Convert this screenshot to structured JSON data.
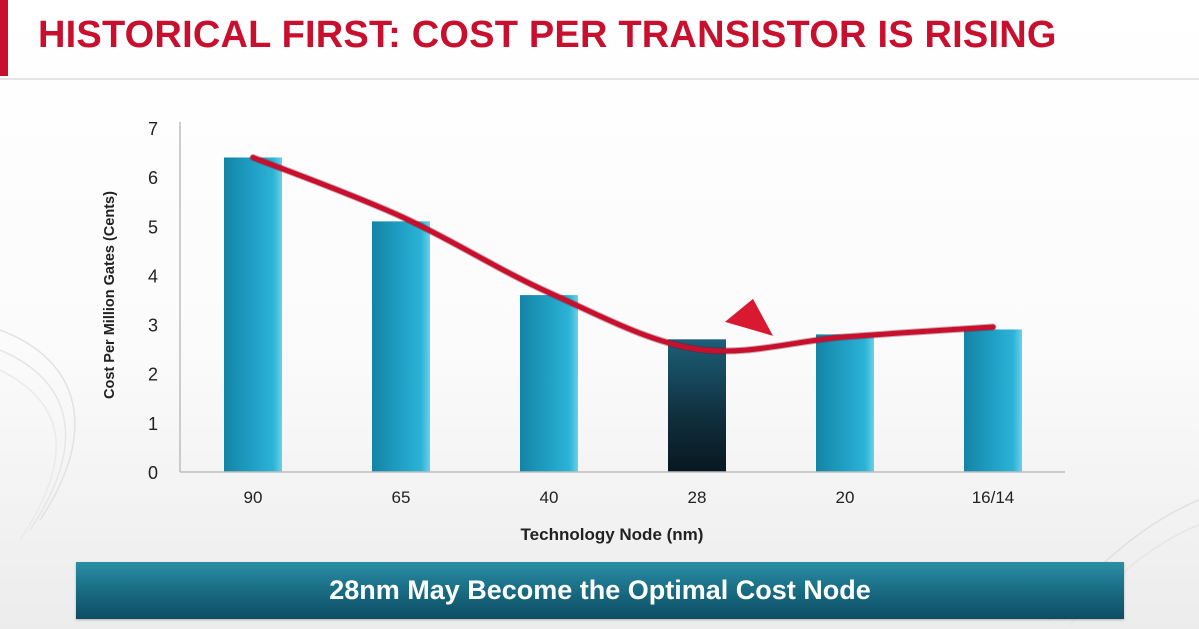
{
  "slide": {
    "title": "HISTORICAL FIRST: COST PER TRANSISTOR IS RISING",
    "banner": "28nm May Become the Optimal Cost Node"
  },
  "colors": {
    "title": "#c8102e",
    "bar": "#1d97b8",
    "bar_highlight": "#0f2a36",
    "trend_line": "#c8102e",
    "banner": "#1a6f86"
  },
  "chart_data": {
    "type": "bar",
    "categories": [
      "90",
      "65",
      "40",
      "28",
      "20",
      "16/14"
    ],
    "values": [
      6.4,
      5.1,
      3.6,
      2.7,
      2.8,
      2.9
    ],
    "highlight_category": "28",
    "trend_line": [
      6.4,
      5.2,
      3.65,
      2.5,
      2.75,
      2.95
    ],
    "xlabel": "Technology Node (nm)",
    "ylabel": "Cost Per Million Gates (Cents)",
    "ylim": [
      0,
      7
    ],
    "yticks": [
      0,
      1,
      2,
      3,
      4,
      5,
      6,
      7
    ],
    "grid": false
  }
}
